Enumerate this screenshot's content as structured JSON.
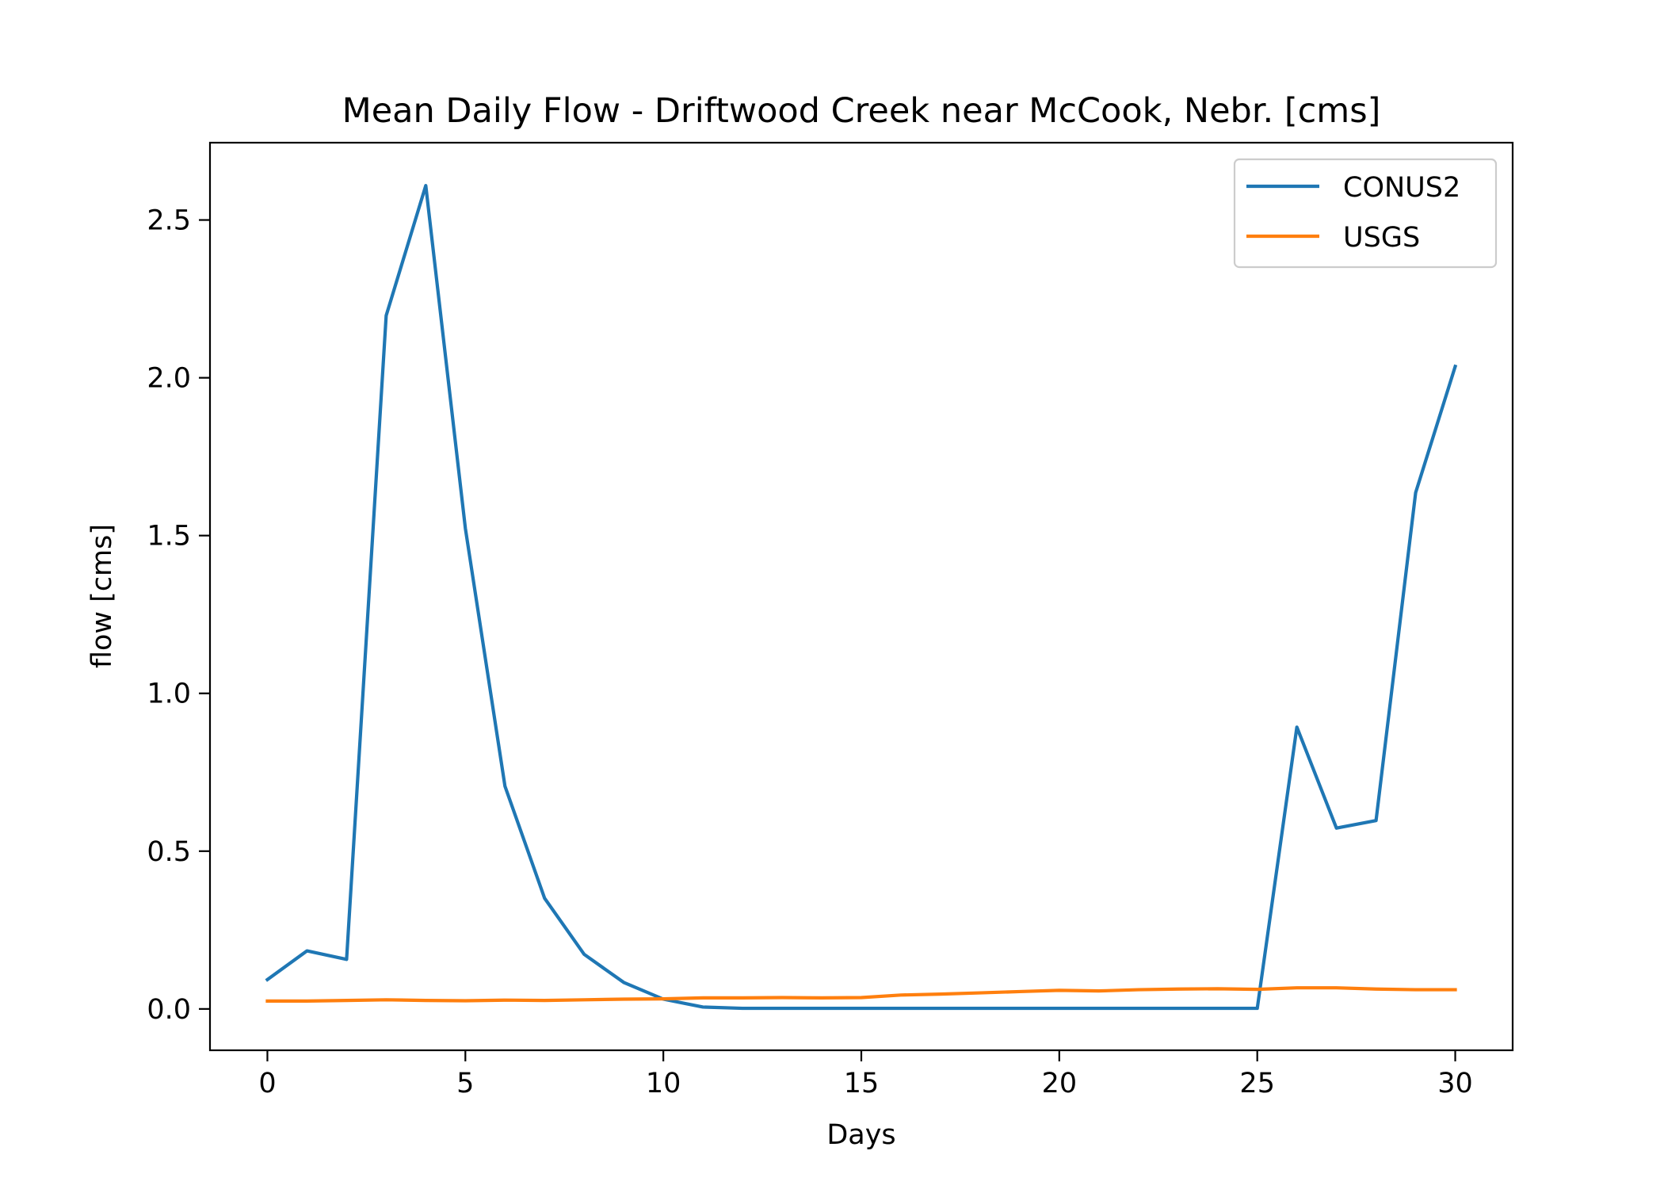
{
  "chart_data": {
    "type": "line",
    "title": "Mean Daily Flow - Driftwood Creek near McCook, Nebr. [cms]",
    "xlabel": "Days",
    "ylabel": "flow [cms]",
    "xlim": [
      -1.45,
      31.45
    ],
    "ylim": [
      -0.131,
      2.745
    ],
    "xticks": [
      0,
      5,
      10,
      15,
      20,
      25,
      30
    ],
    "xtick_labels": [
      "0",
      "5",
      "10",
      "15",
      "20",
      "25",
      "30"
    ],
    "yticks": [
      0.0,
      0.5,
      1.0,
      1.5,
      2.0,
      2.5
    ],
    "ytick_labels": [
      "0.0",
      "0.5",
      "1.0",
      "1.5",
      "2.0",
      "2.5"
    ],
    "grid": false,
    "legend_position": "top-right",
    "x": [
      0,
      1,
      2,
      3,
      4,
      5,
      6,
      7,
      8,
      9,
      10,
      11,
      12,
      13,
      14,
      15,
      16,
      17,
      18,
      19,
      20,
      21,
      22,
      23,
      24,
      25,
      26,
      27,
      28,
      29,
      30
    ],
    "series": [
      {
        "name": "CONUS2",
        "color": "#1f77b4",
        "values": [
          0.093,
          0.184,
          0.157,
          2.197,
          2.609,
          1.523,
          0.706,
          0.351,
          0.173,
          0.084,
          0.031,
          0.006,
          0.002,
          0.002,
          0.002,
          0.002,
          0.002,
          0.002,
          0.002,
          0.002,
          0.002,
          0.002,
          0.002,
          0.002,
          0.002,
          0.002,
          0.893,
          0.573,
          0.597,
          1.636,
          2.036
        ]
      },
      {
        "name": "USGS",
        "color": "#ff7f0e",
        "values": [
          0.025,
          0.025,
          0.027,
          0.029,
          0.027,
          0.026,
          0.028,
          0.027,
          0.029,
          0.031,
          0.032,
          0.035,
          0.035,
          0.036,
          0.035,
          0.036,
          0.044,
          0.047,
          0.051,
          0.055,
          0.059,
          0.057,
          0.061,
          0.063,
          0.064,
          0.062,
          0.067,
          0.067,
          0.063,
          0.061,
          0.061
        ]
      }
    ]
  }
}
